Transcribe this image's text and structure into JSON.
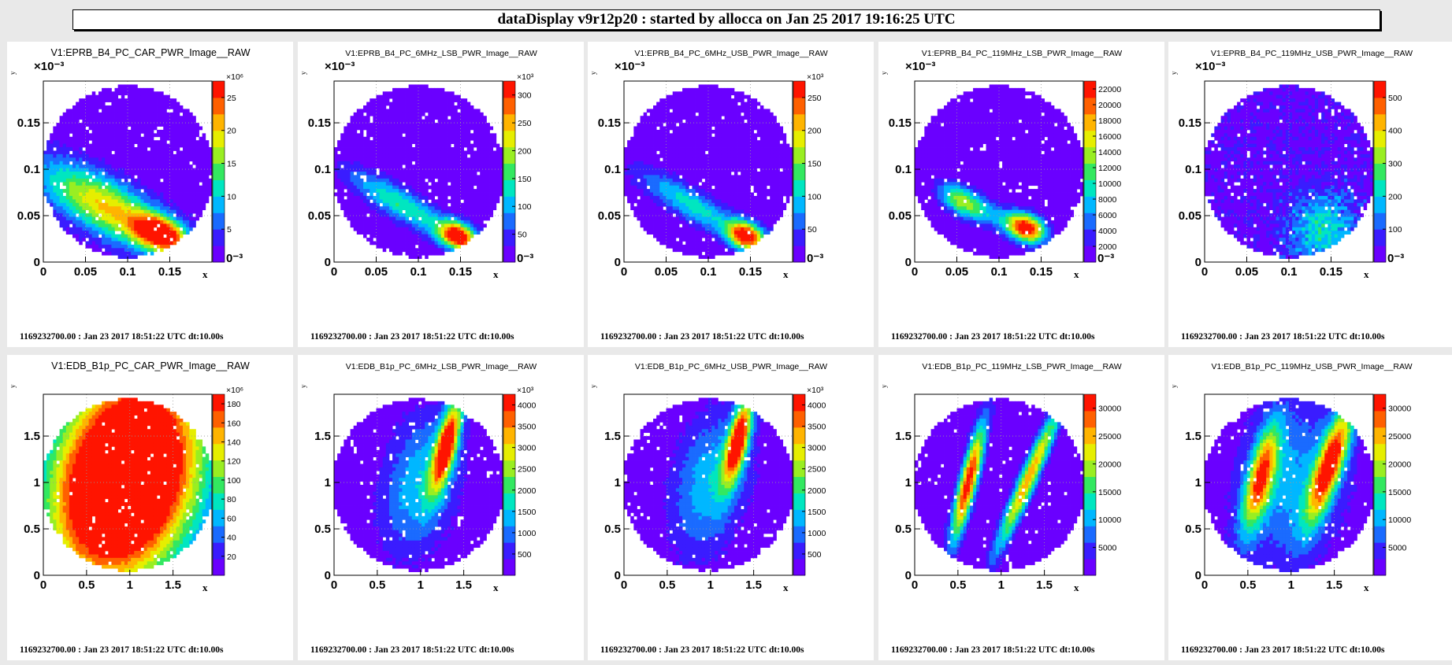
{
  "header": {
    "title": "dataDisplay v9r12p20 : started by allocca on Jan 25 2017 19:16:25 UTC"
  },
  "footer_text": "1169232700.00 : Jan 23 2017 18:51:22 UTC dt:10.00s",
  "colors": {
    "background": "#6a00ff",
    "scale": [
      "#6a00ff",
      "#3a1cff",
      "#1a6bff",
      "#00b7ff",
      "#00e6c0",
      "#33e860",
      "#99ee22",
      "#e6ee00",
      "#ffb400",
      "#ff6000",
      "#ff1400"
    ]
  },
  "chart_data": [
    {
      "type": "heatmap",
      "title": "V1:EPRB_B4_PC_CAR_PWR_Image__RAW",
      "xlabel": "x",
      "ylabel": "y",
      "x_ticks": [
        "0",
        "0.05",
        "0.1",
        "0.15"
      ],
      "y_ticks": [
        "0",
        "0.05",
        "0.1",
        "0.15"
      ],
      "exponent": "×10⁻³",
      "xlim": [
        0,
        0.2
      ],
      "ylim": [
        0,
        0.195
      ],
      "colorbar_ticks": [
        "5",
        "10",
        "15",
        "20",
        "25"
      ],
      "colorbar_exp": "×10⁶",
      "colorbar_min": "0⁻³",
      "blobs": [
        {
          "x": 0.14,
          "y": 0.03,
          "sx": 0.022,
          "sy": 0.012,
          "a": 1.0,
          "rot": -20
        },
        {
          "x": 0.09,
          "y": 0.05,
          "sx": 0.05,
          "sy": 0.02,
          "a": 0.55,
          "rot": -25
        },
        {
          "x": 0.04,
          "y": 0.08,
          "sx": 0.05,
          "sy": 0.02,
          "a": 0.3,
          "rot": -25
        }
      ],
      "background_level": 0.02,
      "noise": 0.05
    },
    {
      "type": "heatmap",
      "title": "V1:EPRB_B4_PC_6MHz_LSB_PWR_Image__RAW",
      "xlabel": "x",
      "ylabel": "y",
      "x_ticks": [
        "0",
        "0.05",
        "0.1",
        "0.15"
      ],
      "y_ticks": [
        "0",
        "0.05",
        "0.1",
        "0.15"
      ],
      "exponent": "×10⁻³",
      "xlim": [
        0,
        0.2
      ],
      "ylim": [
        0,
        0.195
      ],
      "colorbar_ticks": [
        "50",
        "100",
        "150",
        "200",
        "250",
        "300"
      ],
      "colorbar_exp": "×10³",
      "colorbar_min": "0⁻³",
      "blobs": [
        {
          "x": 0.147,
          "y": 0.028,
          "sx": 0.016,
          "sy": 0.01,
          "a": 1.0,
          "rot": -20
        },
        {
          "x": 0.08,
          "y": 0.062,
          "sx": 0.05,
          "sy": 0.012,
          "a": 0.45,
          "rot": -28
        }
      ],
      "background_level": 0.0,
      "noise": 0.04
    },
    {
      "type": "heatmap",
      "title": "V1:EPRB_B4_PC_6MHz_USB_PWR_Image__RAW",
      "xlabel": "x",
      "ylabel": "y",
      "x_ticks": [
        "0",
        "0.05",
        "0.1",
        "0.15"
      ],
      "y_ticks": [
        "0",
        "0.05",
        "0.1",
        "0.15"
      ],
      "exponent": "×10⁻³",
      "xlim": [
        0,
        0.2
      ],
      "ylim": [
        0,
        0.195
      ],
      "colorbar_ticks": [
        "50",
        "100",
        "150",
        "200",
        "250"
      ],
      "colorbar_exp": "×10³",
      "colorbar_min": "0⁻³",
      "blobs": [
        {
          "x": 0.145,
          "y": 0.028,
          "sx": 0.016,
          "sy": 0.01,
          "a": 1.0,
          "rot": -20
        },
        {
          "x": 0.08,
          "y": 0.062,
          "sx": 0.05,
          "sy": 0.012,
          "a": 0.4,
          "rot": -28
        }
      ],
      "background_level": 0.0,
      "noise": 0.04
    },
    {
      "type": "heatmap",
      "title": "V1:EPRB_B4_PC_119MHz_LSB_PWR_Image__RAW",
      "xlabel": "x",
      "ylabel": "y",
      "x_ticks": [
        "0",
        "0.05",
        "0.1",
        "0.15"
      ],
      "y_ticks": [
        "0",
        "0.05",
        "0.1",
        "0.15"
      ],
      "exponent": "×10⁻³",
      "xlim": [
        0,
        0.2
      ],
      "ylim": [
        0,
        0.195
      ],
      "colorbar_ticks": [
        "2000",
        "4000",
        "6000",
        "8000",
        "10000",
        "12000",
        "14000",
        "16000",
        "18000",
        "20000",
        "22000"
      ],
      "colorbar_exp": "",
      "colorbar_min": "0⁻³",
      "blobs": [
        {
          "x": 0.133,
          "y": 0.037,
          "sx": 0.016,
          "sy": 0.01,
          "a": 1.0,
          "rot": -20
        },
        {
          "x": 0.055,
          "y": 0.065,
          "sx": 0.02,
          "sy": 0.01,
          "a": 0.55,
          "rot": -30
        },
        {
          "x": 0.095,
          "y": 0.05,
          "sx": 0.03,
          "sy": 0.01,
          "a": 0.25,
          "rot": -30
        }
      ],
      "background_level": 0.0,
      "noise": 0.04
    },
    {
      "type": "heatmap",
      "title": "V1:EPRB_B4_PC_119MHz_USB_PWR_Image__RAW",
      "xlabel": "x",
      "ylabel": "y",
      "x_ticks": [
        "0",
        "0.05",
        "0.1",
        "0.15"
      ],
      "y_ticks": [
        "0",
        "0.05",
        "0.1",
        "0.15"
      ],
      "exponent": "×10⁻³",
      "xlim": [
        0,
        0.2
      ],
      "ylim": [
        0,
        0.195
      ],
      "colorbar_ticks": [
        "100",
        "200",
        "300",
        "400",
        "500"
      ],
      "colorbar_exp": "",
      "colorbar_min": "0⁻³",
      "blobs": [
        {
          "x": 0.14,
          "y": 0.035,
          "sx": 0.03,
          "sy": 0.03,
          "a": 0.35,
          "rot": 0
        }
      ],
      "background_level": 0.05,
      "noise": 0.18
    },
    {
      "type": "heatmap",
      "title": "V1:EDB_B1p_PC_CAR_PWR_Image__RAW",
      "xlabel": "x",
      "ylabel": "y",
      "x_ticks": [
        "0",
        "0.5",
        "1",
        "1.5"
      ],
      "y_ticks": [
        "0",
        "0.5",
        "1",
        "1.5"
      ],
      "exponent": "",
      "xlim": [
        0,
        1.95
      ],
      "ylim": [
        0,
        1.95
      ],
      "colorbar_ticks": [
        "20",
        "40",
        "60",
        "80",
        "100",
        "120",
        "140",
        "160",
        "180"
      ],
      "colorbar_exp": "×10⁶",
      "colorbar_min": "",
      "blobs": [
        {
          "x": 0.95,
          "y": 1.05,
          "sx": 0.55,
          "sy": 0.8,
          "a": 1.05,
          "rot": -20
        }
      ],
      "background_level": 0.02,
      "noise": 0.03,
      "flat_top": true
    },
    {
      "type": "heatmap",
      "title": "V1:EDB_B1p_PC_6MHz_LSB_PWR_Image__RAW",
      "xlabel": "x",
      "ylabel": "y",
      "x_ticks": [
        "0",
        "0.5",
        "1",
        "1.5"
      ],
      "y_ticks": [
        "0",
        "0.5",
        "1",
        "1.5"
      ],
      "exponent": "",
      "xlim": [
        0,
        1.95
      ],
      "ylim": [
        0,
        1.95
      ],
      "colorbar_ticks": [
        "500",
        "1000",
        "1500",
        "2000",
        "2500",
        "3000",
        "3500",
        "4000"
      ],
      "colorbar_exp": "×10³",
      "colorbar_min": "",
      "blobs": [
        {
          "x": 1.3,
          "y": 1.4,
          "sx": 0.08,
          "sy": 0.35,
          "a": 1.0,
          "rot": -15
        },
        {
          "x": 1.0,
          "y": 1.0,
          "sx": 0.3,
          "sy": 0.55,
          "a": 0.35,
          "rot": -15
        }
      ],
      "background_level": 0.0,
      "noise": 0.04
    },
    {
      "type": "heatmap",
      "title": "V1:EDB_B1p_PC_6MHz_USB_PWR_Image__RAW",
      "xlabel": "x",
      "ylabel": "y",
      "x_ticks": [
        "0",
        "0.5",
        "1",
        "1.5"
      ],
      "y_ticks": [
        "0",
        "0.5",
        "1",
        "1.5"
      ],
      "exponent": "",
      "xlim": [
        0,
        1.95
      ],
      "ylim": [
        0,
        1.95
      ],
      "colorbar_ticks": [
        "500",
        "1000",
        "1500",
        "2000",
        "2500",
        "3000",
        "3500",
        "4000"
      ],
      "colorbar_exp": "×10³",
      "colorbar_min": "",
      "blobs": [
        {
          "x": 1.32,
          "y": 1.45,
          "sx": 0.08,
          "sy": 0.33,
          "a": 1.0,
          "rot": -15
        },
        {
          "x": 1.0,
          "y": 1.0,
          "sx": 0.3,
          "sy": 0.55,
          "a": 0.35,
          "rot": -15
        }
      ],
      "background_level": 0.0,
      "noise": 0.04
    },
    {
      "type": "heatmap",
      "title": "V1:EDB_B1p_PC_119MHz_LSB_PWR_Image__RAW",
      "xlabel": "x",
      "ylabel": "y",
      "x_ticks": [
        "0",
        "0.5",
        "1",
        "1.5"
      ],
      "y_ticks": [
        "0",
        "0.5",
        "1",
        "1.5"
      ],
      "exponent": "",
      "xlim": [
        0,
        1.95
      ],
      "ylim": [
        0,
        1.95
      ],
      "colorbar_ticks": [
        "5000",
        "10000",
        "15000",
        "20000",
        "25000",
        "30000"
      ],
      "colorbar_exp": "",
      "colorbar_min": "",
      "blobs": [
        {
          "x": 0.62,
          "y": 1.0,
          "sx": 0.07,
          "sy": 0.45,
          "a": 1.0,
          "rot": -15
        },
        {
          "x": 1.32,
          "y": 1.05,
          "sx": 0.07,
          "sy": 0.6,
          "a": 0.8,
          "rot": -25
        }
      ],
      "background_level": 0.0,
      "noise": 0.04
    },
    {
      "type": "heatmap",
      "title": "V1:EDB_B1p_PC_119MHz_USB_PWR_Image__RAW",
      "xlabel": "x",
      "ylabel": "y",
      "x_ticks": [
        "0",
        "0.5",
        "1",
        "1.5"
      ],
      "y_ticks": [
        "0",
        "0.5",
        "1",
        "1.5"
      ],
      "exponent": "",
      "xlim": [
        0,
        1.95
      ],
      "ylim": [
        0,
        1.95
      ],
      "colorbar_ticks": [
        "5000",
        "10000",
        "15000",
        "20000",
        "25000",
        "30000"
      ],
      "colorbar_exp": "",
      "colorbar_min": "",
      "blobs": [
        {
          "x": 1.45,
          "y": 1.2,
          "sx": 0.1,
          "sy": 0.45,
          "a": 0.95,
          "rot": -20
        },
        {
          "x": 0.65,
          "y": 1.05,
          "sx": 0.1,
          "sy": 0.4,
          "a": 0.8,
          "rot": -15
        },
        {
          "x": 1.0,
          "y": 1.0,
          "sx": 0.45,
          "sy": 0.65,
          "a": 0.3,
          "rot": -15
        }
      ],
      "background_level": 0.0,
      "noise": 0.04
    }
  ]
}
